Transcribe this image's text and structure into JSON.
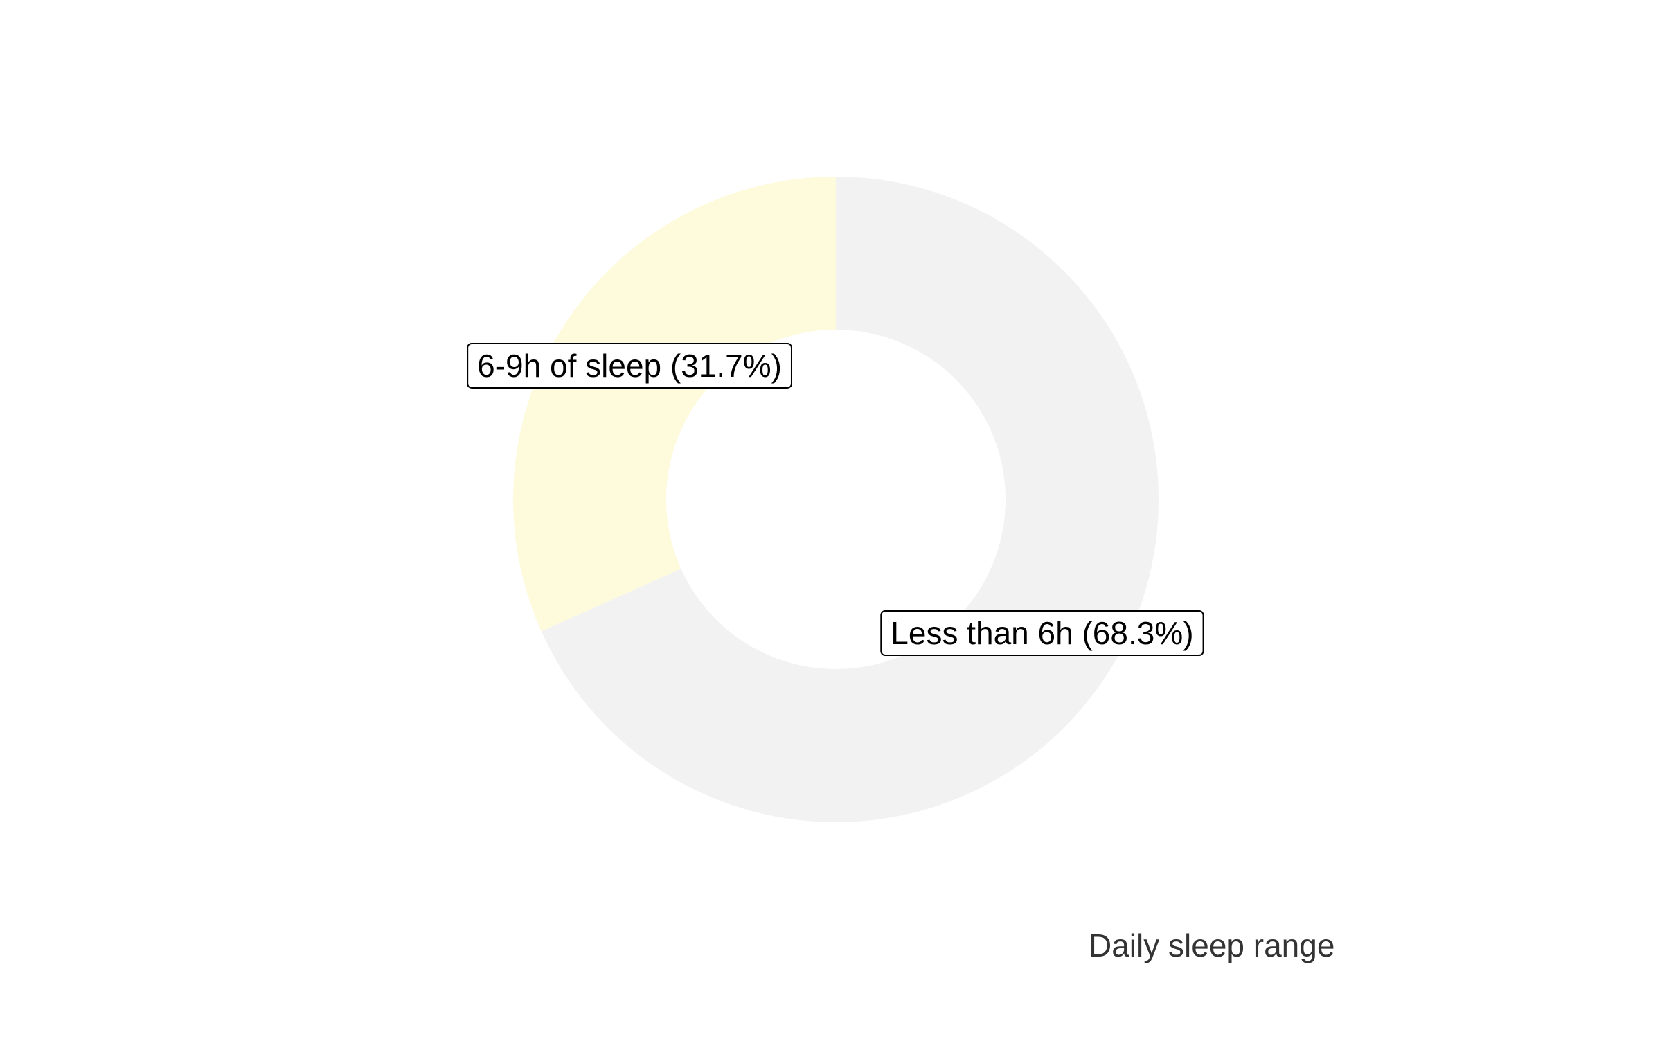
{
  "chart_data": {
    "type": "pie",
    "donut": true,
    "caption": "Daily sleep range",
    "slices": [
      {
        "category": "Less than 6h",
        "value": 68.3,
        "label": "Less than 6h (68.3%)",
        "color": "#f2f2f2"
      },
      {
        "category": "6-9h of sleep",
        "value": 31.7,
        "label": "6-9h of sleep (31.7%)",
        "color": "#fefadc"
      }
    ],
    "start_angle": "12 o'clock",
    "direction": "clockwise",
    "legend": "none",
    "grid": false
  }
}
